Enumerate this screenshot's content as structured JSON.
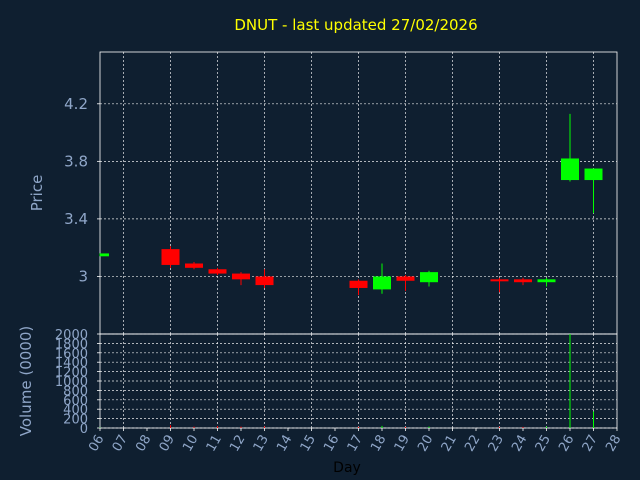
{
  "chart_data": {
    "type": "candlestick",
    "title": "DNUT - last updated 27/02/2026",
    "price_ylabel": "Price",
    "volume_ylabel": "Volume (0000)",
    "xlabel": "Day",
    "price_yticks": [
      3,
      3.4,
      3.8,
      4.2
    ],
    "price_ylim": [
      2.6,
      4.56
    ],
    "volume_yticks": [
      0,
      200,
      400,
      600,
      800,
      1000,
      1200,
      1400,
      1600,
      1800,
      2000
    ],
    "volume_ylim": [
      0,
      2000
    ],
    "x_ticks": [
      "06",
      "07",
      "08",
      "09",
      "10",
      "11",
      "12",
      "13",
      "14",
      "15",
      "16",
      "17",
      "18",
      "19",
      "20",
      "21",
      "22",
      "23",
      "24",
      "25",
      "26",
      "27",
      "28"
    ],
    "grid": true,
    "colors": {
      "up": "#00ff00",
      "down": "#ff0000",
      "background": "#0f1f30",
      "title": "#ffff00",
      "label": "#8fa6c8"
    },
    "candles": [
      {
        "day": "06",
        "open": 3.14,
        "close": 3.16,
        "high": 3.16,
        "low": 3.14,
        "volume": 10
      },
      {
        "day": "09",
        "open": 3.19,
        "close": 3.08,
        "high": 3.21,
        "low": 3.06,
        "volume": 60
      },
      {
        "day": "10",
        "open": 3.09,
        "close": 3.06,
        "high": 3.1,
        "low": 3.05,
        "volume": 30
      },
      {
        "day": "11",
        "open": 3.05,
        "close": 3.02,
        "high": 3.06,
        "low": 3.01,
        "volume": 40
      },
      {
        "day": "12",
        "open": 3.02,
        "close": 2.98,
        "high": 3.03,
        "low": 2.94,
        "volume": 30
      },
      {
        "day": "13",
        "open": 3.0,
        "close": 2.94,
        "high": 3.05,
        "low": 2.92,
        "volume": 35
      },
      {
        "day": "17",
        "open": 2.97,
        "close": 2.92,
        "high": 2.98,
        "low": 2.87,
        "volume": 25
      },
      {
        "day": "18",
        "open": 2.91,
        "close": 3.0,
        "high": 3.09,
        "low": 2.88,
        "volume": 45
      },
      {
        "day": "19",
        "open": 3.0,
        "close": 2.97,
        "high": 3.01,
        "low": 2.9,
        "volume": 25
      },
      {
        "day": "20",
        "open": 2.96,
        "close": 3.03,
        "high": 3.04,
        "low": 2.93,
        "volume": 30
      },
      {
        "day": "23",
        "open": 2.98,
        "close": 2.97,
        "high": 2.99,
        "low": 2.89,
        "volume": 25
      },
      {
        "day": "24",
        "open": 2.98,
        "close": 2.96,
        "high": 2.99,
        "low": 2.94,
        "volume": 25
      },
      {
        "day": "25",
        "open": 2.96,
        "close": 2.98,
        "high": 2.99,
        "low": 2.93,
        "volume": 30
      },
      {
        "day": "26",
        "open": 3.67,
        "close": 3.82,
        "high": 4.13,
        "low": 3.66,
        "volume": 2000
      },
      {
        "day": "27",
        "open": 3.67,
        "close": 3.75,
        "high": 3.75,
        "low": 3.44,
        "volume": 350
      }
    ]
  }
}
